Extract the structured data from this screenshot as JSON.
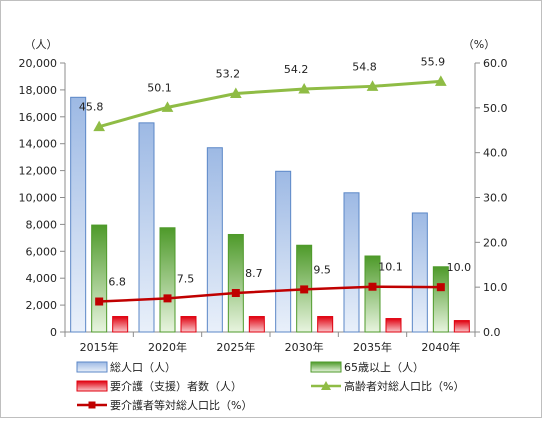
{
  "chart_data": {
    "type": "bar",
    "categories": [
      "2015年",
      "2020年",
      "2025年",
      "2030年",
      "2035年",
      "2040年"
    ],
    "left_unit": "（人）",
    "right_unit": "（%）",
    "y_left": {
      "min": 0,
      "max": 20000,
      "step": 2000,
      "ticks": [
        "0",
        "2,000",
        "4,000",
        "6,000",
        "8,000",
        "10,000",
        "12,000",
        "14,000",
        "16,000",
        "18,000",
        "20,000"
      ]
    },
    "y_right": {
      "min": 0,
      "max": 60,
      "step": 10,
      "ticks": [
        "0.0",
        "10.0",
        "20.0",
        "30.0",
        "40.0",
        "50.0",
        "60.0"
      ]
    },
    "grid": false,
    "legend_position": "bottom",
    "series": [
      {
        "name": "総人口（人）",
        "type": "bar",
        "axis": "left",
        "color": "#5b87c7",
        "values": [
          17450,
          15550,
          13700,
          11950,
          10350,
          8850
        ]
      },
      {
        "name": "65歳以上（人）",
        "type": "bar",
        "axis": "left",
        "color": "#4e9a2a",
        "values": [
          7950,
          7750,
          7250,
          6450,
          5650,
          4850
        ]
      },
      {
        "name": "要介護（支援）者数（人）",
        "type": "bar",
        "axis": "left",
        "color": "#e0000f",
        "values": [
          1150,
          1150,
          1150,
          1150,
          1000,
          850
        ]
      },
      {
        "name": "高齢者対総人口比（%）",
        "type": "line",
        "axis": "right",
        "color": "#8fbc45",
        "marker": "triangle",
        "values": [
          45.8,
          50.1,
          53.2,
          54.2,
          54.8,
          55.9
        ],
        "labels": [
          "45.8",
          "50.1",
          "53.2",
          "54.2",
          "54.8",
          "55.9"
        ]
      },
      {
        "name": "要介護者等対総人口比（%）",
        "type": "line",
        "axis": "right",
        "color": "#c00000",
        "marker": "square",
        "values": [
          6.8,
          7.5,
          8.7,
          9.5,
          10.1,
          10.0
        ],
        "labels": [
          "6.8",
          "7.5",
          "8.7",
          "9.5",
          "10.1",
          "10.0"
        ]
      }
    ]
  }
}
